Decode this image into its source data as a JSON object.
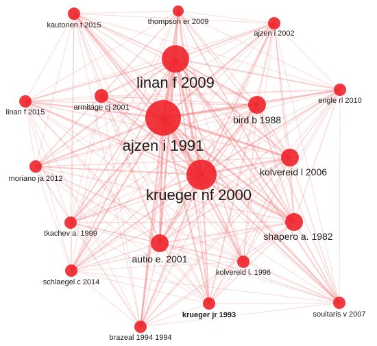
{
  "network": {
    "nodes": [
      {
        "id": "ajzen-1991",
        "label": "ajzen i 1991",
        "weight": 10,
        "color": "#ee1c24"
      },
      {
        "id": "linan-2009",
        "label": "linan f 2009",
        "weight": 8,
        "color": "#ee1c24"
      },
      {
        "id": "krueger-2000",
        "label": "krueger nf 2000",
        "weight": 9,
        "color": "#ee1c24"
      },
      {
        "id": "bird-1988",
        "label": "bird b 1988",
        "weight": 5,
        "color": "#ee1c24"
      },
      {
        "id": "kolvereid-2006",
        "label": "kolvereid l 2006",
        "weight": 5,
        "color": "#ee1c24"
      },
      {
        "id": "shapero-1982",
        "label": "shapero a. 1982",
        "weight": 5,
        "color": "#ee1c24"
      },
      {
        "id": "autio-2001",
        "label": "autio e. 2001",
        "weight": 5,
        "color": "#ee1c24"
      },
      {
        "id": "kautonen-2015",
        "label": "kautonen t 2015",
        "weight": 3,
        "color": "#ee1c24"
      },
      {
        "id": "thompson-2009",
        "label": "thompson er 2009",
        "weight": 3,
        "color": "#ee1c24"
      },
      {
        "id": "ajzen-2002",
        "label": "ajzen i 2002",
        "weight": 3,
        "color": "#ee1c24"
      },
      {
        "id": "linan-2015",
        "label": "linan f 2015",
        "weight": 3,
        "color": "#ee1c24"
      },
      {
        "id": "armitage-2001",
        "label": "armitage cj 2001",
        "weight": 3,
        "color": "#ee1c24"
      },
      {
        "id": "engle-2010",
        "label": "engle rl 2010",
        "weight": 3,
        "color": "#ee1c24"
      },
      {
        "id": "moriano-2012",
        "label": "moriano ja 2012",
        "weight": 3,
        "color": "#ee1c24"
      },
      {
        "id": "tkachev-1999",
        "label": "tkachev a. 1999",
        "weight": 3,
        "color": "#ee1c24"
      },
      {
        "id": "schlaegel-2014",
        "label": "schlaegel c 2014",
        "weight": 3,
        "color": "#ee1c24"
      },
      {
        "id": "kolvereid-1996",
        "label": "kolvereid l. 1996",
        "weight": 3,
        "color": "#ee1c24"
      },
      {
        "id": "krueger-1993",
        "label": "krueger jr 1993",
        "weight": 3,
        "color": "#ee1c24"
      },
      {
        "id": "souitaris-2007",
        "label": "souitaris v 2007",
        "weight": 3,
        "color": "#ee1c24"
      },
      {
        "id": "brazeal-1994",
        "label": "brazeal 1994 1994",
        "weight": 3,
        "color": "#ee1c24"
      }
    ],
    "edge_color": "#f07878"
  }
}
